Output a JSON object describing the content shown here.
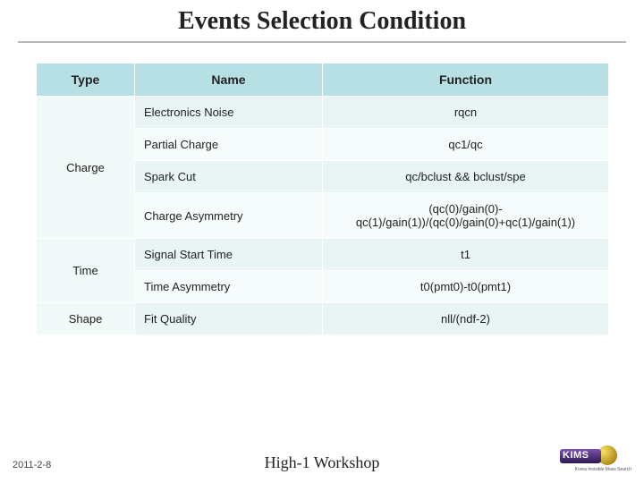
{
  "title": "Events Selection Condition",
  "columns": [
    "Type",
    "Name",
    "Function"
  ],
  "groups": [
    {
      "type": "Charge",
      "rows": [
        {
          "name": "Electronics Noise",
          "func": "rqcn"
        },
        {
          "name": "Partial Charge",
          "func": "qc1/qc"
        },
        {
          "name": "Spark Cut",
          "func": "qc/bclust && bclust/spe"
        },
        {
          "name": "Charge Asymmetry",
          "func": "(qc(0)/gain(0)-qc(1)/gain(1))/(qc(0)/gain(0)+qc(1)/gain(1))"
        }
      ]
    },
    {
      "type": "Time",
      "rows": [
        {
          "name": "Signal Start Time",
          "func": "t1"
        },
        {
          "name": "Time Asymmetry",
          "func": "t0(pmt0)-t0(pmt1)"
        }
      ]
    },
    {
      "type": "Shape",
      "rows": [
        {
          "name": "Fit Quality",
          "func": "nll/(ndf-2)"
        }
      ]
    }
  ],
  "footer": {
    "date": "2011-2-8",
    "center": "High-1 Workshop",
    "logo_text": "KIMS",
    "logo_sub": "Korea Invisible Mass Search"
  },
  "colors": {
    "header_bg": "#b7e0e4",
    "band_a": "#e9f4f5",
    "band_b": "#f6fbfb"
  }
}
